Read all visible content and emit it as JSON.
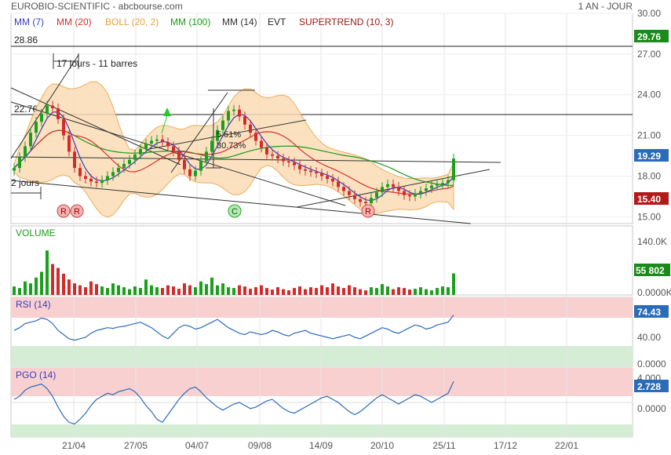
{
  "header": {
    "title": "EUROBIO-SCIENTIFIC - abcbourse.com",
    "period": "1 AN - JOUR"
  },
  "legend": [
    {
      "label": "MM (7)",
      "color": "#3b3bbd"
    },
    {
      "label": "MM (20)",
      "color": "#d23030"
    },
    {
      "label": "BOLL (20, 2)",
      "color": "#e8a040"
    },
    {
      "label": "MM (100)",
      "color": "#1a9a1a"
    },
    {
      "label": "MM (14)",
      "color": "#333333"
    },
    {
      "label": "EVT",
      "color": "#222222"
    },
    {
      "label": "SUPERTREND (10, 3)",
      "color": "#a01818"
    }
  ],
  "annotations": {
    "level_high": "28.86",
    "level_mid": "22.76",
    "duration_1": "17 jours - 11 barres",
    "duration_2": "2 jours",
    "pct_1": "5.51%",
    "pct_2": "30.73%",
    "markers": [
      "R",
      "R",
      "C",
      "R"
    ]
  },
  "badges": {
    "high": "29.76",
    "last": "19.29",
    "supertrend": "15.40",
    "volume_last": "55 802",
    "rsi_last": "74.43",
    "pgo_last": "2.728"
  },
  "chart_data": [
    {
      "type": "candlestick",
      "title": "EUROBIO-SCIENTIFIC",
      "x_ticks": [
        "21/04",
        "27/05",
        "04/07",
        "09/08",
        "14/09",
        "20/10",
        "25/11",
        "17/12",
        "22/01"
      ],
      "y_ticks": [
        "30.00",
        "27.00",
        "24.00",
        "21.00",
        "18.00",
        "15.00"
      ],
      "ylim": [
        14.5,
        30.0
      ],
      "close": [
        18.6,
        19.4,
        20.2,
        21.2,
        22.0,
        22.6,
        23.2,
        23.0,
        22.2,
        21.0,
        19.8,
        18.6,
        18.0,
        17.8,
        17.6,
        17.5,
        17.7,
        18.0,
        18.3,
        18.6,
        18.9,
        19.2,
        19.6,
        20.0,
        20.4,
        20.6,
        20.7,
        20.5,
        20.2,
        19.8,
        19.2,
        18.5,
        18.0,
        18.4,
        19.1,
        19.8,
        20.6,
        21.4,
        22.1,
        22.8,
        22.9,
        22.4,
        21.8,
        21.2,
        20.6,
        20.1,
        19.6,
        19.5,
        19.3,
        19.1,
        19.0,
        18.8,
        18.5,
        18.4,
        18.3,
        18.2,
        18.0,
        17.8,
        17.6,
        17.2,
        16.9,
        16.6,
        16.3,
        16.1,
        16.0,
        16.4,
        16.8,
        17.2,
        17.4,
        17.2,
        16.9,
        16.6,
        16.5,
        16.7,
        16.9,
        17.1,
        17.3,
        17.4,
        17.5,
        17.7,
        19.29
      ],
      "ma7_color": "#3b3bbd",
      "ma20_color": "#d23030",
      "ma100_color": "#1a9a1a",
      "boll_color": "#e8a040"
    },
    {
      "type": "bar",
      "title": "VOLUME",
      "y_ticks": [
        "140.0K",
        "0.0000K"
      ],
      "ylim": [
        0,
        140000
      ],
      "values": [
        22000,
        18000,
        35000,
        30000,
        45000,
        60000,
        115000,
        80000,
        70000,
        55000,
        40000,
        30000,
        25000,
        20000,
        35000,
        28000,
        22000,
        18000,
        30000,
        25000,
        20000,
        15000,
        22000,
        18000,
        40000,
        25000,
        20000,
        18000,
        25000,
        22000,
        16000,
        30000,
        25000,
        20000,
        35000,
        28000,
        45000,
        25000,
        30000,
        20000,
        18000,
        25000,
        22000,
        16000,
        20000,
        25000,
        18000,
        14000,
        20000,
        15000,
        12000,
        18000,
        22000,
        15000,
        20000,
        18000,
        25000,
        20000,
        30000,
        22000,
        18000,
        25000,
        20000,
        15000,
        12000,
        20000,
        18000,
        28000,
        22000,
        15000,
        20000,
        18000,
        14000,
        16000,
        20000,
        15000,
        12000,
        18000,
        22000,
        20000,
        55802
      ]
    },
    {
      "type": "line",
      "title": "RSI (14)",
      "y_ticks": [
        "40.00",
        "0.0000"
      ],
      "ylim": [
        0,
        100
      ],
      "values": [
        52,
        56,
        62,
        64,
        66,
        70,
        68,
        62,
        52,
        46,
        40,
        38,
        40,
        42,
        48,
        52,
        54,
        56,
        55,
        57,
        58,
        60,
        62,
        64,
        60,
        56,
        50,
        44,
        40,
        48,
        56,
        60,
        58,
        54,
        56,
        60,
        64,
        68,
        62,
        56,
        52,
        48,
        46,
        50,
        48,
        46,
        48,
        52,
        50,
        46,
        44,
        48,
        50,
        52,
        48,
        46,
        44,
        42,
        40,
        42,
        44,
        46,
        42,
        40,
        44,
        48,
        52,
        56,
        54,
        50,
        48,
        52,
        56,
        60,
        58,
        54,
        56,
        60,
        62,
        64,
        74.43
      ]
    },
    {
      "type": "line",
      "title": "PGO (14)",
      "y_ticks": [
        "4.000",
        "0.0000"
      ],
      "ylim": [
        -4.5,
        4.5
      ],
      "values": [
        0.4,
        0.8,
        1.6,
        2.0,
        2.2,
        2.4,
        1.8,
        0.8,
        -0.6,
        -1.8,
        -2.6,
        -2.8,
        -2.2,
        -1.4,
        -0.4,
        0.4,
        0.8,
        1.2,
        1.0,
        1.4,
        1.6,
        1.8,
        1.4,
        0.6,
        -0.4,
        -1.2,
        -2.2,
        -2.6,
        -1.6,
        -0.6,
        0.4,
        1.2,
        1.8,
        2.0,
        1.4,
        0.6,
        0.0,
        -0.6,
        -1.0,
        -0.6,
        -0.2,
        0.0,
        -0.4,
        -0.8,
        -0.6,
        -0.2,
        0.2,
        0.4,
        -0.2,
        -0.8,
        -1.2,
        -1.4,
        -1.0,
        -0.6,
        -0.2,
        0.2,
        0.6,
        0.8,
        0.4,
        0.0,
        -0.6,
        -1.2,
        -1.6,
        -1.2,
        -0.6,
        0.0,
        0.6,
        1.0,
        0.6,
        0.2,
        -0.2,
        0.2,
        0.6,
        1.0,
        0.8,
        0.4,
        0.0,
        0.4,
        0.8,
        1.2,
        2.728
      ]
    }
  ]
}
